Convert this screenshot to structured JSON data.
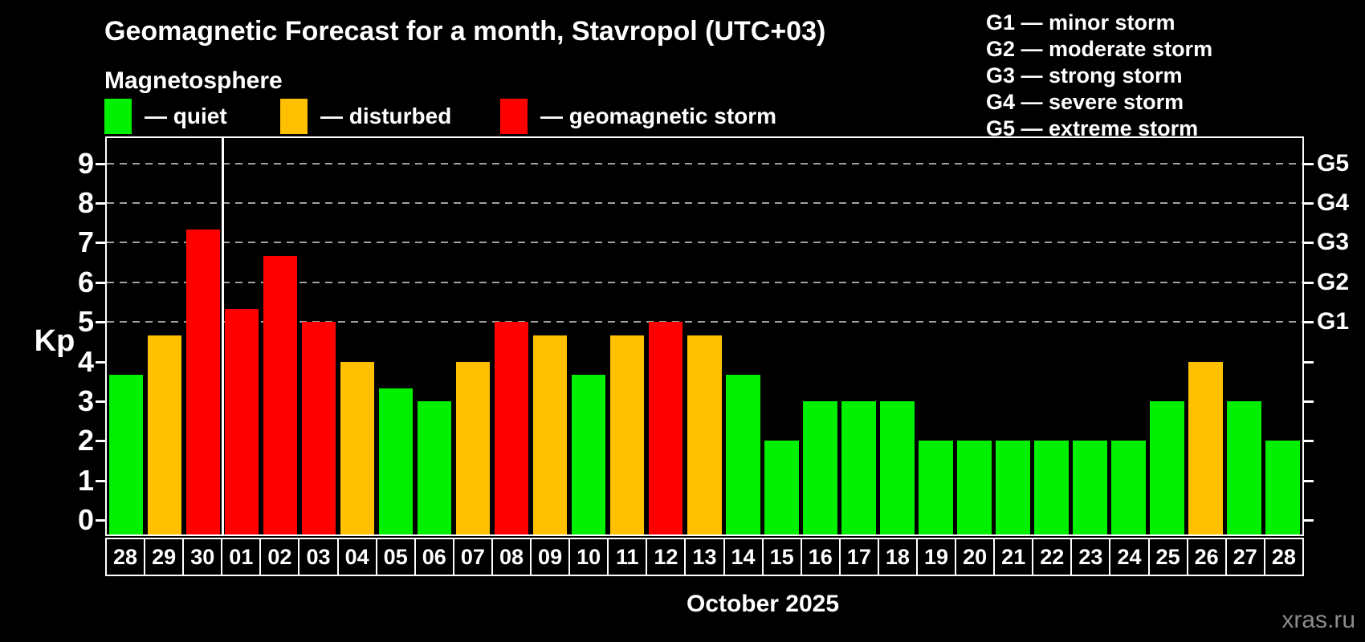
{
  "title": "Geomagnetic Forecast for a month, Stavropol (UTC+03)",
  "subtitle": "Magnetosphere",
  "legend": {
    "items": [
      {
        "label": "— quiet",
        "status": "quiet",
        "color": "#00f000"
      },
      {
        "label": "— disturbed",
        "status": "disturbed",
        "color": "#ffc000"
      },
      {
        "label": "— geomagnetic storm",
        "status": "storm",
        "color": "#ff0000"
      }
    ]
  },
  "g_legend": {
    "lines": [
      "G1 — minor storm",
      "G2 — moderate storm",
      "G3 — strong storm",
      "G4 — severe storm",
      "G5 — extreme storm"
    ]
  },
  "axis": {
    "kp_label": "Kp",
    "y_ticks": [
      0,
      1,
      2,
      3,
      4,
      5,
      6,
      7,
      8,
      9
    ],
    "g_labels": [
      {
        "label": "G1",
        "kp": 5
      },
      {
        "label": "G2",
        "kp": 6
      },
      {
        "label": "G3",
        "kp": 7
      },
      {
        "label": "G4",
        "kp": 8
      },
      {
        "label": "G5",
        "kp": 9
      }
    ]
  },
  "watermark": "xras.ru",
  "chart_data": {
    "type": "bar",
    "title": "Geomagnetic Forecast for a month, Stavropol (UTC+03)",
    "xlabel": "October 2025",
    "ylabel": "Kp",
    "ylim": [
      0,
      9
    ],
    "y_ticks": [
      0,
      1,
      2,
      3,
      4,
      5,
      6,
      7,
      8,
      9
    ],
    "gridlines_kp": [
      5,
      6,
      7,
      8,
      9
    ],
    "gridline_color": "#a0a0a0",
    "status_colors": {
      "quiet": "#00f000",
      "disturbed": "#ffc000",
      "storm": "#ff0000"
    },
    "month_separator_after_index": 2,
    "categories": [
      "28",
      "29",
      "30",
      "01",
      "02",
      "03",
      "04",
      "05",
      "06",
      "07",
      "08",
      "09",
      "10",
      "11",
      "12",
      "13",
      "14",
      "15",
      "16",
      "17",
      "18",
      "19",
      "20",
      "21",
      "22",
      "23",
      "24",
      "25",
      "26",
      "27",
      "28"
    ],
    "values": [
      3.67,
      4.67,
      7.33,
      5.33,
      6.67,
      5,
      4,
      3.33,
      3,
      4,
      5,
      4.67,
      3.67,
      4.67,
      5,
      4.67,
      3.67,
      2,
      3,
      3,
      3,
      2,
      2,
      2,
      2,
      2,
      2,
      3,
      4,
      3,
      2
    ],
    "statuses": [
      "quiet",
      "disturbed",
      "storm",
      "storm",
      "storm",
      "storm",
      "disturbed",
      "quiet",
      "quiet",
      "disturbed",
      "storm",
      "disturbed",
      "quiet",
      "disturbed",
      "storm",
      "disturbed",
      "quiet",
      "quiet",
      "quiet",
      "quiet",
      "quiet",
      "quiet",
      "quiet",
      "quiet",
      "quiet",
      "quiet",
      "quiet",
      "quiet",
      "disturbed",
      "quiet",
      "quiet"
    ]
  }
}
